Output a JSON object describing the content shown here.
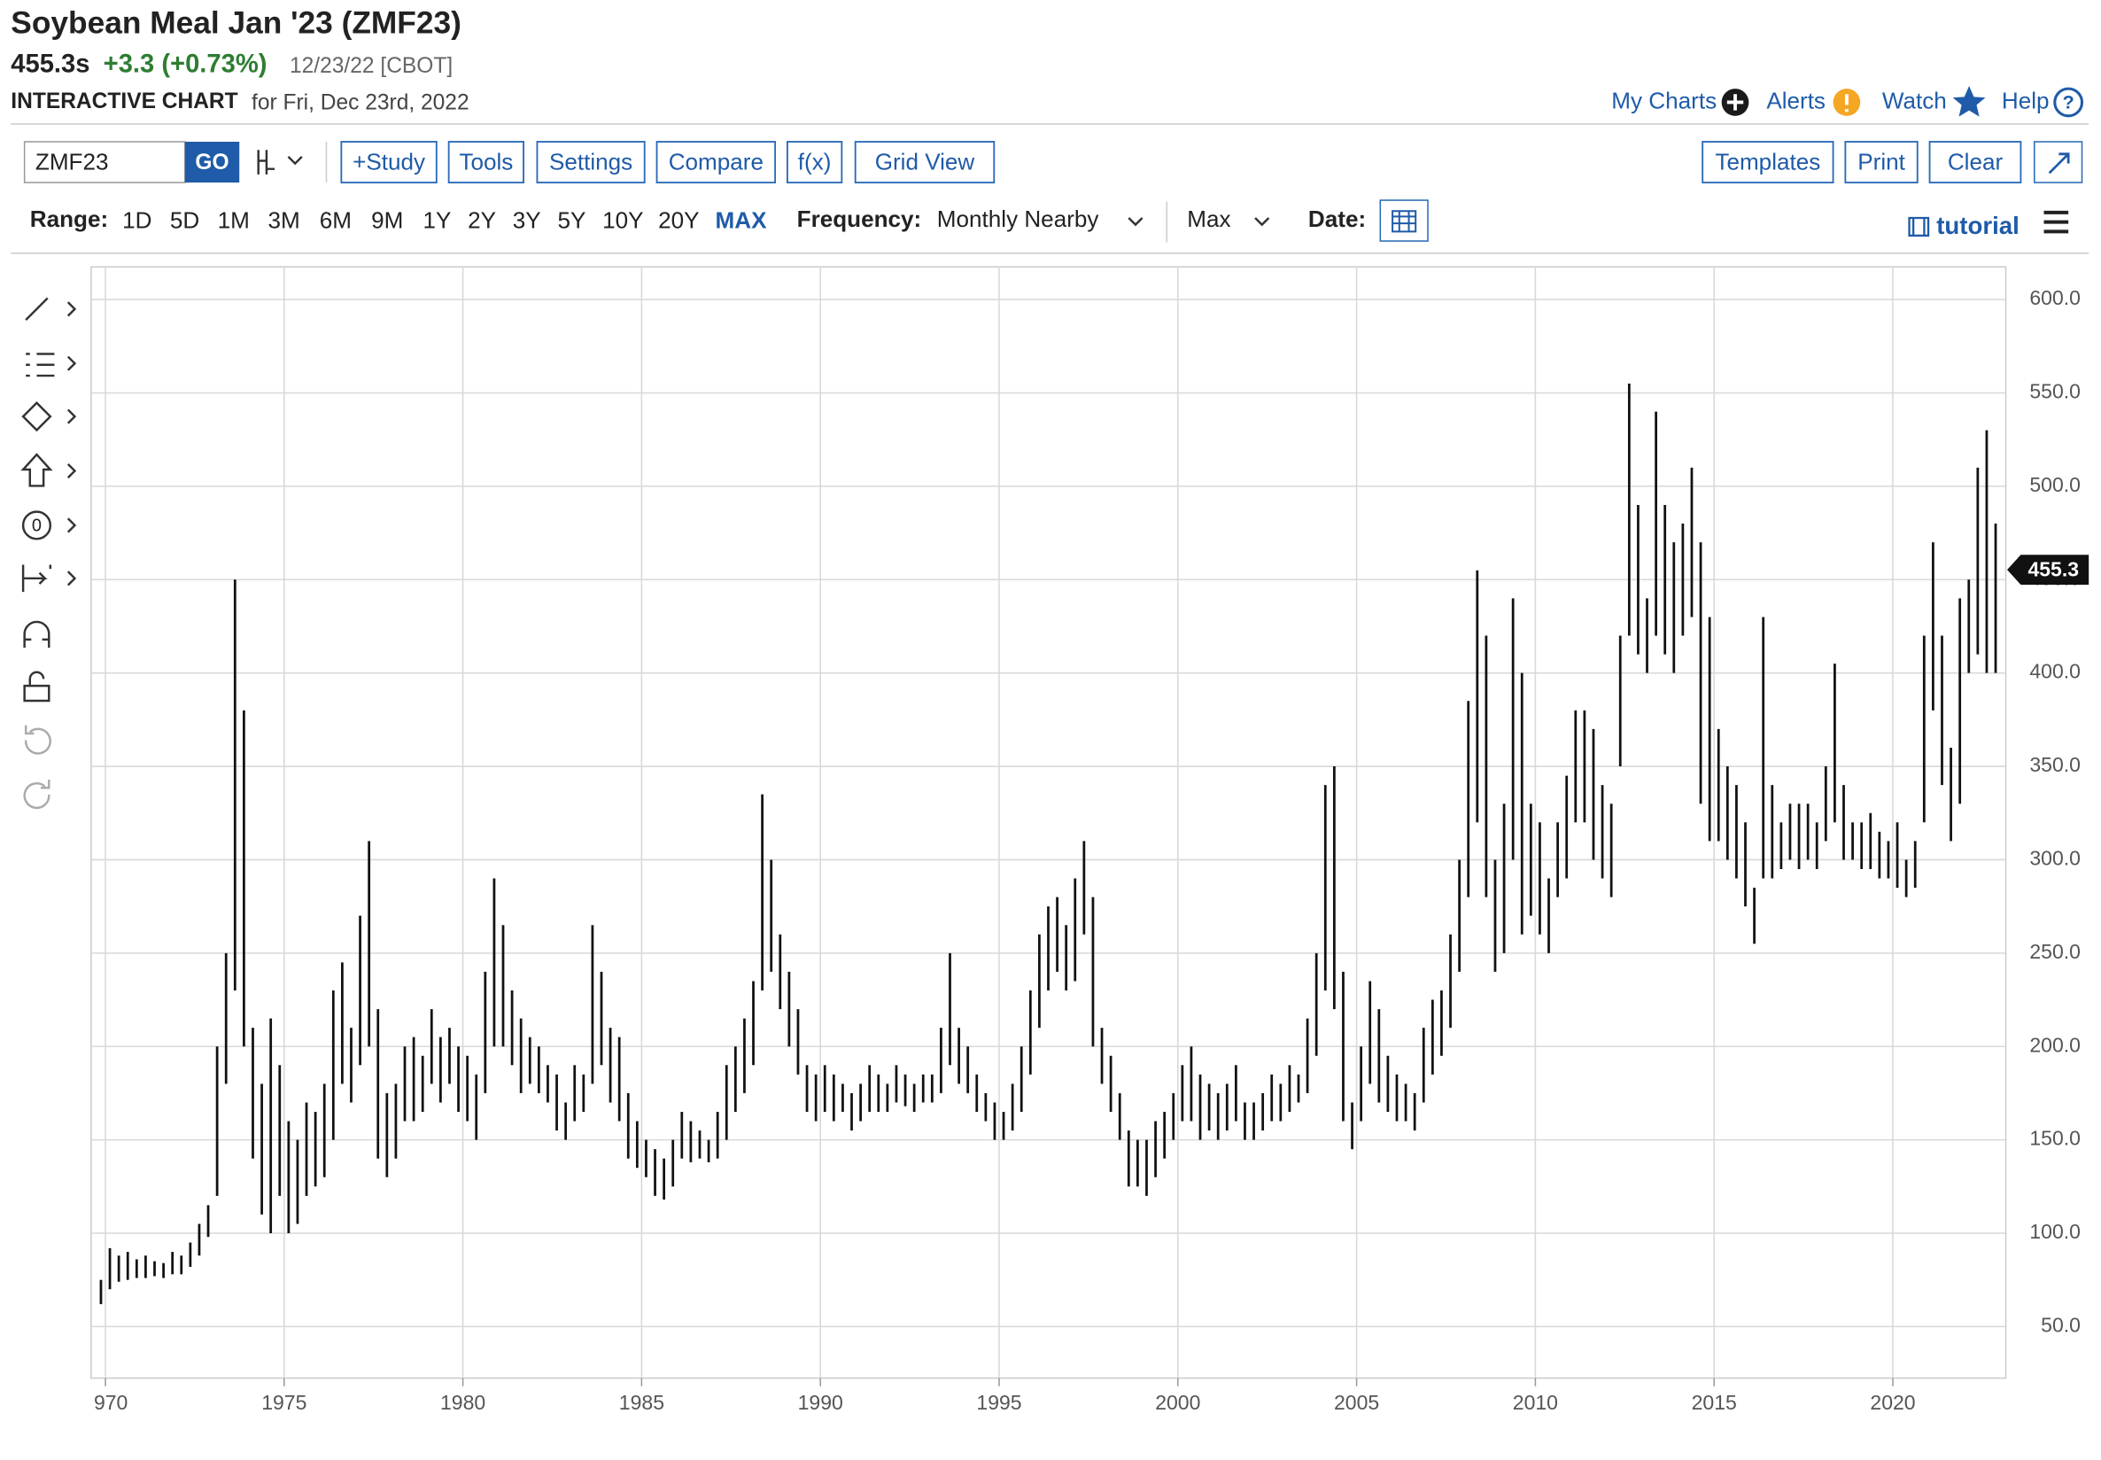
{
  "header": {
    "title": "Soybean Meal Jan '23 (ZMF23)",
    "price": "455.3s",
    "change": "+3.3 (+0.73%)",
    "date": "12/23/22 [CBOT]",
    "chart_label": "INTERACTIVE CHART",
    "chart_date": "for Fri, Dec 23rd, 2022"
  },
  "nav": [
    "My Charts",
    "Alerts",
    "Watch",
    "Help"
  ],
  "toolbar": {
    "symbol": "ZMF23",
    "go": "GO",
    "buttons": [
      "+Study",
      "Tools",
      "Settings",
      "Compare",
      "f(x)",
      "Grid View"
    ],
    "right_buttons": [
      "Templates",
      "Print",
      "Clear"
    ]
  },
  "range_bar": {
    "label": "Range:",
    "ranges": [
      "1D",
      "5D",
      "1M",
      "3M",
      "6M",
      "9M",
      "1Y",
      "2Y",
      "3Y",
      "5Y",
      "10Y",
      "20Y",
      "MAX"
    ],
    "frequency_label": "Frequency:",
    "frequency": "Monthly Nearby",
    "period": "Max",
    "date_label": "Date:",
    "tutorial": "tutorial"
  },
  "chart_data": {
    "type": "ohlc",
    "last_price": 455.3,
    "last_label": "455.3",
    "xlim": [
      1969.6,
      2023.16
    ],
    "ylim": [
      22.4,
      617.5
    ],
    "grid": true,
    "xticks": [
      {
        "value": 1970,
        "label": "970"
      },
      1975,
      1980,
      1985,
      1990,
      1995,
      2000,
      2005,
      2010,
      2015,
      2020
    ],
    "yticks": [
      {
        "value": 50,
        "label": "50.0"
      },
      {
        "value": 100,
        "label": "100.0"
      },
      {
        "value": 150,
        "label": "150.0"
      },
      {
        "value": 200,
        "label": "200.0"
      },
      {
        "value": 250,
        "label": "250.0"
      },
      {
        "value": 300,
        "label": "300.0"
      },
      {
        "value": 350,
        "label": "350.0"
      },
      {
        "value": 400,
        "label": "400.0"
      },
      {
        "value": 450,
        "label": "450.0"
      },
      {
        "value": 500,
        "label": "500.0"
      },
      {
        "value": 550,
        "label": "550.0"
      },
      {
        "value": 600,
        "label": "600.0"
      }
    ],
    "series": [
      {
        "color": "#111111",
        "x": [
          1969.875,
          1970.125,
          1970.375,
          1970.625,
          1970.875,
          1971.125,
          1971.375,
          1971.625,
          1971.875,
          1972.125,
          1972.375,
          1972.625,
          1972.875,
          1973.125,
          1973.375,
          1973.625,
          1973.875,
          1974.125,
          1974.375,
          1974.625,
          1974.875,
          1975.125,
          1975.375,
          1975.625,
          1975.875,
          1976.125,
          1976.375,
          1976.625,
          1976.875,
          1977.125,
          1977.375,
          1977.625,
          1977.875,
          1978.125,
          1978.375,
          1978.625,
          1978.875,
          1979.125,
          1979.375,
          1979.625,
          1979.875,
          1980.125,
          1980.375,
          1980.625,
          1980.875,
          1981.125,
          1981.375,
          1981.625,
          1981.875,
          1982.125,
          1982.375,
          1982.625,
          1982.875,
          1983.125,
          1983.375,
          1983.625,
          1983.875,
          1984.125,
          1984.375,
          1984.625,
          1984.875,
          1985.125,
          1985.375,
          1985.625,
          1985.875,
          1986.125,
          1986.375,
          1986.625,
          1986.875,
          1987.125,
          1987.375,
          1987.625,
          1987.875,
          1988.125,
          1988.375,
          1988.625,
          1988.875,
          1989.125,
          1989.375,
          1989.625,
          1989.875,
          1990.125,
          1990.375,
          1990.625,
          1990.875,
          1991.125,
          1991.375,
          1991.625,
          1991.875,
          1992.125,
          1992.375,
          1992.625,
          1992.875,
          1993.125,
          1993.375,
          1993.625,
          1993.875,
          1994.125,
          1994.375,
          1994.625,
          1994.875,
          1995.125,
          1995.375,
          1995.625,
          1995.875,
          1996.125,
          1996.375,
          1996.625,
          1996.875,
          1997.125,
          1997.375,
          1997.625,
          1997.875,
          1998.125,
          1998.375,
          1998.625,
          1998.875,
          1999.125,
          1999.375,
          1999.625,
          1999.875,
          2000.125,
          2000.375,
          2000.625,
          2000.875,
          2001.125,
          2001.375,
          2001.625,
          2001.875,
          2002.125,
          2002.375,
          2002.625,
          2002.875,
          2003.125,
          2003.375,
          2003.625,
          2003.875,
          2004.125,
          2004.375,
          2004.625,
          2004.875,
          2005.125,
          2005.375,
          2005.625,
          2005.875,
          2006.125,
          2006.375,
          2006.625,
          2006.875,
          2007.125,
          2007.375,
          2007.625,
          2007.875,
          2008.125,
          2008.375,
          2008.625,
          2008.875,
          2009.125,
          2009.375,
          2009.625,
          2009.875,
          2010.125,
          2010.375,
          2010.625,
          2010.875,
          2011.125,
          2011.375,
          2011.625,
          2011.875,
          2012.125,
          2012.375,
          2012.625,
          2012.875,
          2013.125,
          2013.375,
          2013.625,
          2013.875,
          2014.125,
          2014.375,
          2014.625,
          2014.875,
          2015.125,
          2015.375,
          2015.625,
          2015.875,
          2016.125,
          2016.375,
          2016.625,
          2016.875,
          2017.125,
          2017.375,
          2017.625,
          2017.875,
          2018.125,
          2018.375,
          2018.625,
          2018.875,
          2019.125,
          2019.375,
          2019.625,
          2019.875,
          2020.125,
          2020.375,
          2020.625,
          2020.875,
          2021.125,
          2021.375,
          2021.625,
          2021.875,
          2022.125,
          2022.375,
          2022.625,
          2022.875
        ],
        "high": [
          75,
          92,
          88,
          90,
          86,
          88,
          85,
          84,
          90,
          88,
          95,
          105,
          115,
          200,
          250,
          450,
          380,
          210,
          180,
          215,
          190,
          160,
          150,
          170,
          165,
          180,
          230,
          245,
          210,
          270,
          310,
          220,
          175,
          180,
          200,
          205,
          195,
          220,
          205,
          210,
          200,
          195,
          185,
          240,
          290,
          265,
          230,
          215,
          205,
          200,
          190,
          185,
          170,
          190,
          185,
          265,
          240,
          210,
          205,
          175,
          160,
          150,
          145,
          140,
          150,
          165,
          160,
          155,
          150,
          165,
          190,
          200,
          215,
          235,
          335,
          300,
          260,
          240,
          220,
          190,
          185,
          190,
          185,
          180,
          175,
          180,
          190,
          185,
          180,
          190,
          185,
          180,
          185,
          185,
          210,
          250,
          210,
          200,
          185,
          175,
          170,
          165,
          180,
          200,
          230,
          260,
          275,
          280,
          265,
          290,
          310,
          280,
          210,
          195,
          175,
          155,
          150,
          150,
          160,
          165,
          175,
          190,
          200,
          185,
          180,
          175,
          180,
          190,
          170,
          170,
          175,
          185,
          180,
          190,
          185,
          215,
          250,
          340,
          350,
          240,
          170,
          200,
          235,
          220,
          195,
          185,
          180,
          175,
          210,
          225,
          230,
          260,
          300,
          385,
          455,
          420,
          300,
          330,
          440,
          400,
          330,
          320,
          290,
          320,
          345,
          380,
          380,
          370,
          340,
          330,
          420,
          555,
          490,
          440,
          540,
          490,
          470,
          480,
          510,
          470,
          430,
          370,
          350,
          340,
          320,
          285,
          430,
          340,
          320,
          330,
          330,
          330,
          320,
          350,
          405,
          340,
          320,
          320,
          325,
          315,
          310,
          320,
          300,
          310,
          420,
          470,
          420,
          360,
          440,
          450,
          510,
          530,
          480
        ],
        "low": [
          62,
          70,
          74,
          75,
          76,
          76,
          77,
          76,
          78,
          78,
          82,
          88,
          98,
          120,
          180,
          230,
          200,
          140,
          110,
          100,
          120,
          100,
          105,
          120,
          125,
          130,
          150,
          180,
          170,
          190,
          200,
          140,
          130,
          140,
          160,
          160,
          165,
          180,
          170,
          180,
          165,
          160,
          150,
          175,
          200,
          200,
          190,
          175,
          180,
          175,
          170,
          155,
          150,
          160,
          165,
          180,
          190,
          170,
          160,
          140,
          135,
          130,
          120,
          118,
          125,
          140,
          138,
          140,
          138,
          140,
          150,
          165,
          175,
          190,
          230,
          240,
          220,
          200,
          185,
          165,
          160,
          165,
          160,
          165,
          155,
          160,
          165,
          165,
          165,
          170,
          168,
          165,
          170,
          170,
          175,
          190,
          180,
          175,
          165,
          160,
          150,
          150,
          155,
          165,
          185,
          210,
          230,
          240,
          230,
          235,
          260,
          200,
          180,
          165,
          150,
          125,
          125,
          120,
          130,
          140,
          150,
          160,
          160,
          150,
          155,
          150,
          155,
          160,
          150,
          150,
          155,
          160,
          160,
          165,
          170,
          175,
          195,
          230,
          220,
          160,
          145,
          160,
          180,
          170,
          165,
          160,
          160,
          155,
          170,
          185,
          195,
          210,
          240,
          280,
          320,
          280,
          240,
          250,
          300,
          260,
          270,
          260,
          250,
          280,
          290,
          320,
          320,
          300,
          290,
          280,
          350,
          420,
          410,
          400,
          420,
          410,
          400,
          420,
          430,
          330,
          310,
          310,
          300,
          290,
          275,
          255,
          290,
          290,
          295,
          300,
          295,
          300,
          295,
          310,
          320,
          300,
          300,
          295,
          295,
          290,
          290,
          285,
          280,
          285,
          320,
          380,
          340,
          310,
          330,
          400,
          410,
          400,
          400
        ]
      }
    ]
  }
}
